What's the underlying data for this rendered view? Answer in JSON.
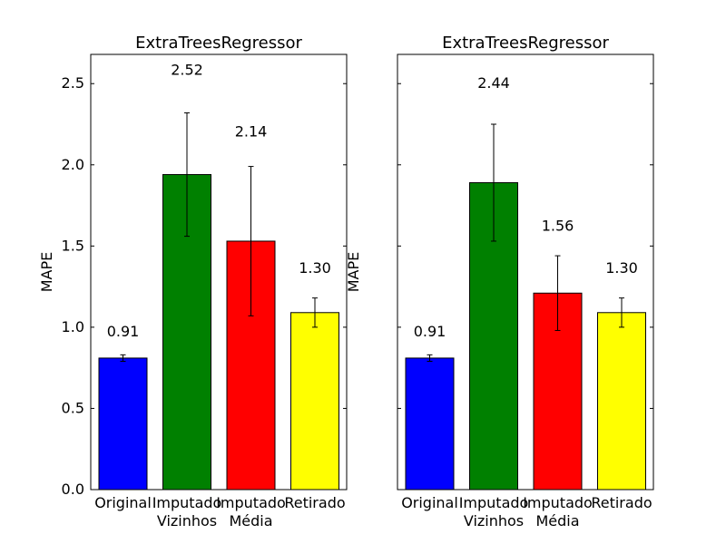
{
  "chart_data": [
    {
      "type": "bar",
      "title": "ExtraTreesRegressor",
      "ylabel": "MAPE",
      "xlabel": "",
      "ylim": [
        0,
        2.68
      ],
      "yticks": [
        "0.0",
        "0.5",
        "1.0",
        "1.5",
        "2.0",
        "2.5"
      ],
      "categories": [
        "Original",
        "Imputado\nVizinhos",
        "Imputado\nMédia",
        "Retirado"
      ],
      "values": [
        0.81,
        1.94,
        1.53,
        1.09
      ],
      "errors": [
        0.02,
        0.38,
        0.46,
        0.09
      ],
      "labels": [
        "0.91",
        "2.52",
        "2.14",
        "1.30"
      ],
      "colors": [
        "#0000ff",
        "#008000",
        "#ff0000",
        "#ffff00"
      ],
      "grid": false,
      "show_ytick_labels": true
    },
    {
      "type": "bar",
      "title": "ExtraTreesRegressor",
      "ylabel": "MAPE",
      "xlabel": "",
      "ylim": [
        0,
        2.68
      ],
      "yticks": [
        "0.0",
        "0.5",
        "1.0",
        "1.5",
        "2.0",
        "2.5"
      ],
      "categories": [
        "Original",
        "Imputado\nVizinhos",
        "Imputado\nMédia",
        "Retirado"
      ],
      "values": [
        0.81,
        1.89,
        1.21,
        1.09
      ],
      "errors": [
        0.02,
        0.36,
        0.23,
        0.09
      ],
      "labels": [
        "0.91",
        "2.44",
        "1.56",
        "1.30"
      ],
      "colors": [
        "#0000ff",
        "#008000",
        "#ff0000",
        "#ffff00"
      ],
      "grid": false,
      "show_ytick_labels": false
    }
  ]
}
